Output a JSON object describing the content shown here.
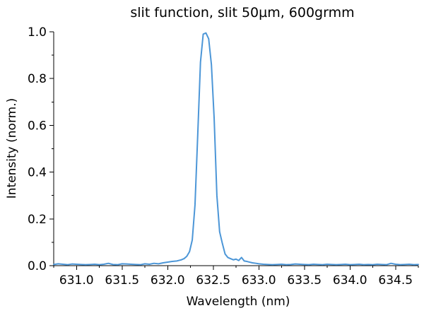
{
  "chart_data": {
    "type": "line",
    "title": "slit function, slit 50µm, 600grmm",
    "xlabel": "Wavelength (nm)",
    "ylabel": "Intensity (norm.)",
    "xlim": [
      630.75,
      634.75
    ],
    "ylim": [
      0.0,
      1.0
    ],
    "xticks": [
      "631.0",
      "631.5",
      "632.0",
      "632.5",
      "633.0",
      "633.5",
      "634.0",
      "634.5"
    ],
    "yticks": [
      "0.0",
      "0.2",
      "0.4",
      "0.6",
      "0.8",
      "1.0"
    ],
    "x_tick_values": [
      631.0,
      631.5,
      632.0,
      632.5,
      633.0,
      633.5,
      634.0,
      634.5
    ],
    "y_tick_values": [
      0.0,
      0.2,
      0.4,
      0.6,
      0.8,
      1.0
    ],
    "grid": false,
    "legend": "none",
    "colors": {
      "line": "#4c96d7",
      "axis": "#000000",
      "text": "#000000",
      "background": "#ffffff"
    },
    "series": [
      {
        "color": "#4c96d7",
        "x": [
          630.75,
          630.8,
          630.85,
          630.9,
          630.95,
          631.0,
          631.05,
          631.1,
          631.15,
          631.2,
          631.25,
          631.3,
          631.35,
          631.4,
          631.45,
          631.5,
          631.55,
          631.6,
          631.65,
          631.7,
          631.75,
          631.8,
          631.85,
          631.9,
          631.95,
          632.0,
          632.05,
          632.1,
          632.15,
          632.18,
          632.21,
          632.24,
          632.27,
          632.3,
          632.33,
          632.36,
          632.39,
          632.42,
          632.45,
          632.48,
          632.51,
          632.54,
          632.57,
          632.6,
          632.63,
          632.66,
          632.69,
          632.72,
          632.75,
          632.78,
          632.81,
          632.84,
          632.87,
          632.9,
          632.93,
          632.97,
          633.0,
          633.05,
          633.1,
          633.15,
          633.2,
          633.25,
          633.3,
          633.35,
          633.4,
          633.45,
          633.5,
          633.55,
          633.6,
          633.65,
          633.7,
          633.75,
          633.8,
          633.85,
          633.9,
          633.95,
          634.0,
          634.05,
          634.1,
          634.15,
          634.2,
          634.25,
          634.3,
          634.35,
          634.4,
          634.45,
          634.5,
          634.55,
          634.6,
          634.65,
          634.7,
          634.75
        ],
        "y": [
          0.005,
          0.008,
          0.006,
          0.004,
          0.007,
          0.006,
          0.005,
          0.004,
          0.005,
          0.006,
          0.004,
          0.006,
          0.01,
          0.005,
          0.004,
          0.008,
          0.007,
          0.006,
          0.005,
          0.004,
          0.008,
          0.006,
          0.01,
          0.008,
          0.012,
          0.015,
          0.018,
          0.02,
          0.025,
          0.03,
          0.04,
          0.06,
          0.11,
          0.26,
          0.56,
          0.87,
          0.99,
          0.995,
          0.97,
          0.86,
          0.63,
          0.3,
          0.145,
          0.095,
          0.05,
          0.035,
          0.03,
          0.025,
          0.028,
          0.022,
          0.035,
          0.02,
          0.018,
          0.015,
          0.012,
          0.01,
          0.008,
          0.006,
          0.005,
          0.004,
          0.005,
          0.006,
          0.004,
          0.005,
          0.007,
          0.006,
          0.005,
          0.004,
          0.006,
          0.005,
          0.004,
          0.006,
          0.005,
          0.004,
          0.005,
          0.006,
          0.004,
          0.005,
          0.006,
          0.004,
          0.005,
          0.004,
          0.006,
          0.005,
          0.004,
          0.01,
          0.006,
          0.004,
          0.005,
          0.006,
          0.004,
          0.005
        ]
      }
    ]
  }
}
